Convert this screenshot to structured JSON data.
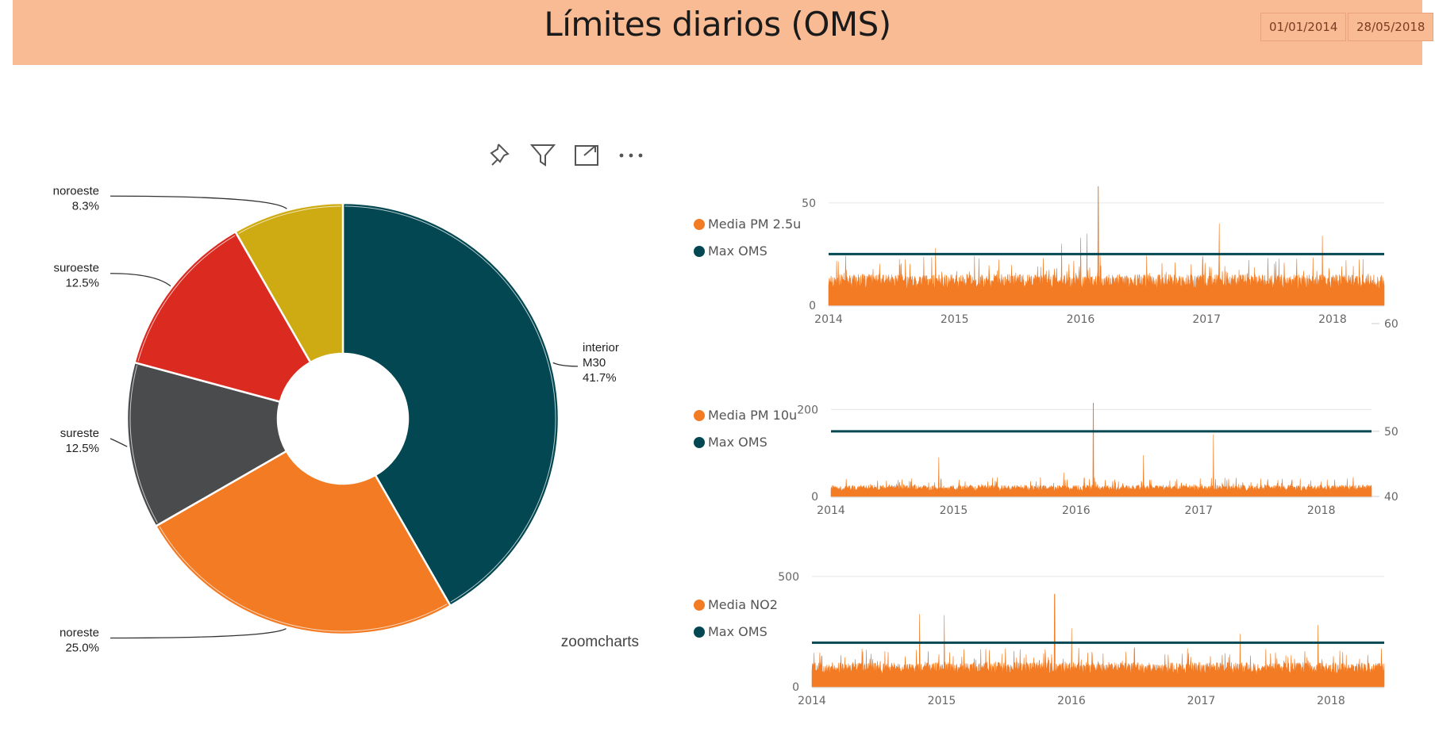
{
  "header": {
    "title": "Límites diarios (OMS)",
    "date_start": "01/01/2014",
    "date_end": "28/05/2018",
    "background": "#f8bb94"
  },
  "toolbar": {
    "icons": [
      "pin-icon",
      "filter-icon",
      "focus-mode-icon",
      "more-options-icon"
    ]
  },
  "brand": "zoomcharts",
  "chart_data": [
    {
      "type": "pie",
      "variant": "donut",
      "slices": [
        {
          "label": "interior M30",
          "label_lines": [
            "interior",
            "M30"
          ],
          "value": 41.7,
          "pct": "41.7%",
          "color": "#024751"
        },
        {
          "label": "noreste",
          "label_lines": [
            "noreste"
          ],
          "value": 25.0,
          "pct": "25.0%",
          "color": "#f27b24"
        },
        {
          "label": "sureste",
          "label_lines": [
            "sureste"
          ],
          "value": 12.5,
          "pct": "12.5%",
          "color": "#4a4b4d"
        },
        {
          "label": "suroeste",
          "label_lines": [
            "suroeste"
          ],
          "value": 12.5,
          "pct": "12.5%",
          "color": "#db2b20"
        },
        {
          "label": "noroeste",
          "label_lines": [
            "noroeste"
          ],
          "value": 8.3,
          "pct": "8.3%",
          "color": "#ceab13"
        }
      ]
    },
    {
      "type": "area",
      "legend": [
        "Media PM 2.5u",
        "Max OMS"
      ],
      "x_ticks": [
        "2014",
        "2015",
        "2016",
        "2017",
        "2018"
      ],
      "y_ticks": [
        0,
        50
      ],
      "ylim": [
        0,
        60
      ],
      "threshold": 25,
      "baseline": 8,
      "noise": 9,
      "spikes": [
        {
          "x": 2016.14,
          "y": 58
        },
        {
          "x": 2016.05,
          "y": 35
        },
        {
          "x": 2016.0,
          "y": 33
        },
        {
          "x": 2017.1,
          "y": 40
        },
        {
          "x": 2017.92,
          "y": 34
        },
        {
          "x": 2015.85,
          "y": 30
        },
        {
          "x": 2014.85,
          "y": 28
        }
      ],
      "colors": {
        "area": "#f27b24",
        "threshold": "#024751"
      }
    },
    {
      "type": "area",
      "legend": [
        "Media PM 10u",
        "Max OMS"
      ],
      "x_ticks": [
        "2014",
        "2015",
        "2016",
        "2017",
        "2018"
      ],
      "y_ticks": [
        0,
        200
      ],
      "y2_ticks": [
        40,
        50,
        60
      ],
      "ylim": [
        0,
        230
      ],
      "threshold": 150,
      "baseline": 12,
      "noise": 18,
      "spikes": [
        {
          "x": 2016.14,
          "y": 215
        },
        {
          "x": 2017.12,
          "y": 143
        },
        {
          "x": 2014.88,
          "y": 90
        },
        {
          "x": 2016.55,
          "y": 95
        },
        {
          "x": 2015.9,
          "y": 55
        }
      ],
      "colors": {
        "area": "#f27b24",
        "threshold": "#024751"
      }
    },
    {
      "type": "area",
      "legend": [
        "Media NO2",
        "Max OMS"
      ],
      "x_ticks": [
        "2014",
        "2015",
        "2016",
        "2017",
        "2018"
      ],
      "y_ticks": [
        0,
        500
      ],
      "ylim": [
        0,
        550
      ],
      "threshold": 200,
      "baseline": 55,
      "noise": 70,
      "spikes": [
        {
          "x": 2015.87,
          "y": 420
        },
        {
          "x": 2014.83,
          "y": 330
        },
        {
          "x": 2015.02,
          "y": 325
        },
        {
          "x": 2016.0,
          "y": 265
        },
        {
          "x": 2017.9,
          "y": 280
        },
        {
          "x": 2017.3,
          "y": 240
        }
      ],
      "colors": {
        "area": "#f27b24",
        "threshold": "#024751"
      }
    }
  ]
}
